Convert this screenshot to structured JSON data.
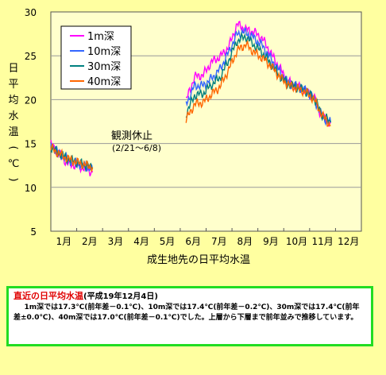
{
  "chart_data": {
    "type": "line",
    "title": "",
    "ylabel": "日平均水温（℃）",
    "xlabel": "成生地先の日平均水温",
    "ylim": [
      5,
      30
    ],
    "yticks": [
      5,
      10,
      15,
      20,
      25,
      30
    ],
    "months": [
      "1月",
      "2月",
      "3月",
      "4月",
      "5月",
      "6月",
      "7月",
      "8月",
      "9月",
      "10月",
      "11月",
      "12月"
    ],
    "legend_position": "top-left",
    "annotation": {
      "main": "観測休止",
      "sub": "(2/21～6/8)"
    },
    "series": [
      {
        "name": "1m深",
        "color": "#ff00ff",
        "segments": [
          [
            [
              1,
              14.9
            ],
            [
              10,
              13.9
            ],
            [
              20,
              12.8
            ],
            [
              30,
              12.5
            ],
            [
              40,
              12.2
            ],
            [
              50,
              11.7
            ]
          ],
          [
            [
              160,
              19.9
            ],
            [
              170,
              22.6
            ],
            [
              180,
              22.8
            ],
            [
              190,
              24.3
            ],
            [
              200,
              24.9
            ],
            [
              210,
              26.0
            ],
            [
              220,
              28.6
            ],
            [
              230,
              28.0
            ],
            [
              240,
              27.7
            ],
            [
              250,
              26.9
            ],
            [
              260,
              25.2
            ],
            [
              270,
              23.6
            ],
            [
              280,
              22.0
            ],
            [
              290,
              21.6
            ],
            [
              300,
              21.0
            ],
            [
              310,
              20.3
            ],
            [
              320,
              18.0
            ],
            [
              330,
              17.3
            ]
          ]
        ]
      },
      {
        "name": "10m深",
        "color": "#3366ff",
        "segments": [
          [
            [
              1,
              14.8
            ],
            [
              10,
              13.9
            ],
            [
              20,
              13.2
            ],
            [
              30,
              12.8
            ],
            [
              40,
              12.4
            ],
            [
              50,
              12.1
            ]
          ],
          [
            [
              160,
              19.5
            ],
            [
              170,
              21.6
            ],
            [
              180,
              21.6
            ],
            [
              190,
              22.4
            ],
            [
              200,
              23.5
            ],
            [
              210,
              25.4
            ],
            [
              220,
              27.5
            ],
            [
              230,
              27.7
            ],
            [
              240,
              27.0
            ],
            [
              250,
              26.1
            ],
            [
              260,
              24.6
            ],
            [
              270,
              23.2
            ],
            [
              280,
              21.9
            ],
            [
              290,
              21.5
            ],
            [
              300,
              21.1
            ],
            [
              310,
              20.2
            ],
            [
              320,
              18.0
            ],
            [
              330,
              17.4
            ]
          ]
        ]
      },
      {
        "name": "30m深",
        "color": "#008080",
        "segments": [
          [
            [
              1,
              14.6
            ],
            [
              10,
              13.9
            ],
            [
              20,
              13.3
            ],
            [
              30,
              12.9
            ],
            [
              40,
              12.6
            ],
            [
              50,
              12.2
            ]
          ],
          [
            [
              160,
              18.4
            ],
            [
              170,
              20.5
            ],
            [
              180,
              20.7
            ],
            [
              190,
              21.7
            ],
            [
              200,
              22.5
            ],
            [
              210,
              24.5
            ],
            [
              220,
              26.7
            ],
            [
              230,
              27.2
            ],
            [
              240,
              26.2
            ],
            [
              250,
              25.3
            ],
            [
              260,
              24.0
            ],
            [
              270,
              22.7
            ],
            [
              280,
              21.8
            ],
            [
              290,
              21.4
            ],
            [
              300,
              21.0
            ],
            [
              310,
              20.2
            ],
            [
              320,
              18.2
            ],
            [
              330,
              17.4
            ]
          ]
        ]
      },
      {
        "name": "40m深",
        "color": "#ff6600",
        "segments": [
          [
            [
              1,
              14.5
            ],
            [
              10,
              13.9
            ],
            [
              20,
              13.3
            ],
            [
              30,
              12.9
            ],
            [
              40,
              12.6
            ],
            [
              50,
              12.3
            ]
          ],
          [
            [
              160,
              17.7
            ],
            [
              170,
              19.5
            ],
            [
              180,
              19.7
            ],
            [
              190,
              20.6
            ],
            [
              200,
              21.5
            ],
            [
              210,
              23.4
            ],
            [
              220,
              25.6
            ],
            [
              230,
              26.3
            ],
            [
              240,
              25.4
            ],
            [
              250,
              24.7
            ],
            [
              260,
              23.8
            ],
            [
              270,
              22.6
            ],
            [
              280,
              21.7
            ],
            [
              290,
              21.3
            ],
            [
              300,
              20.9
            ],
            [
              310,
              20.1
            ],
            [
              320,
              18.2
            ],
            [
              330,
              17.0
            ]
          ]
        ]
      }
    ]
  },
  "note": {
    "heading": "直近の日平均水温",
    "date": "(平成19年12月4日)",
    "body": "1m深では17.3℃(前年差－0.1℃)、10m深では17.4℃(前年差－0.2℃)、30m深では17.4℃(前年差±0.0℃)、40m深では17.0℃(前年差－0.1℃)でした。上層から下層まで前年並みで推移しています。"
  }
}
